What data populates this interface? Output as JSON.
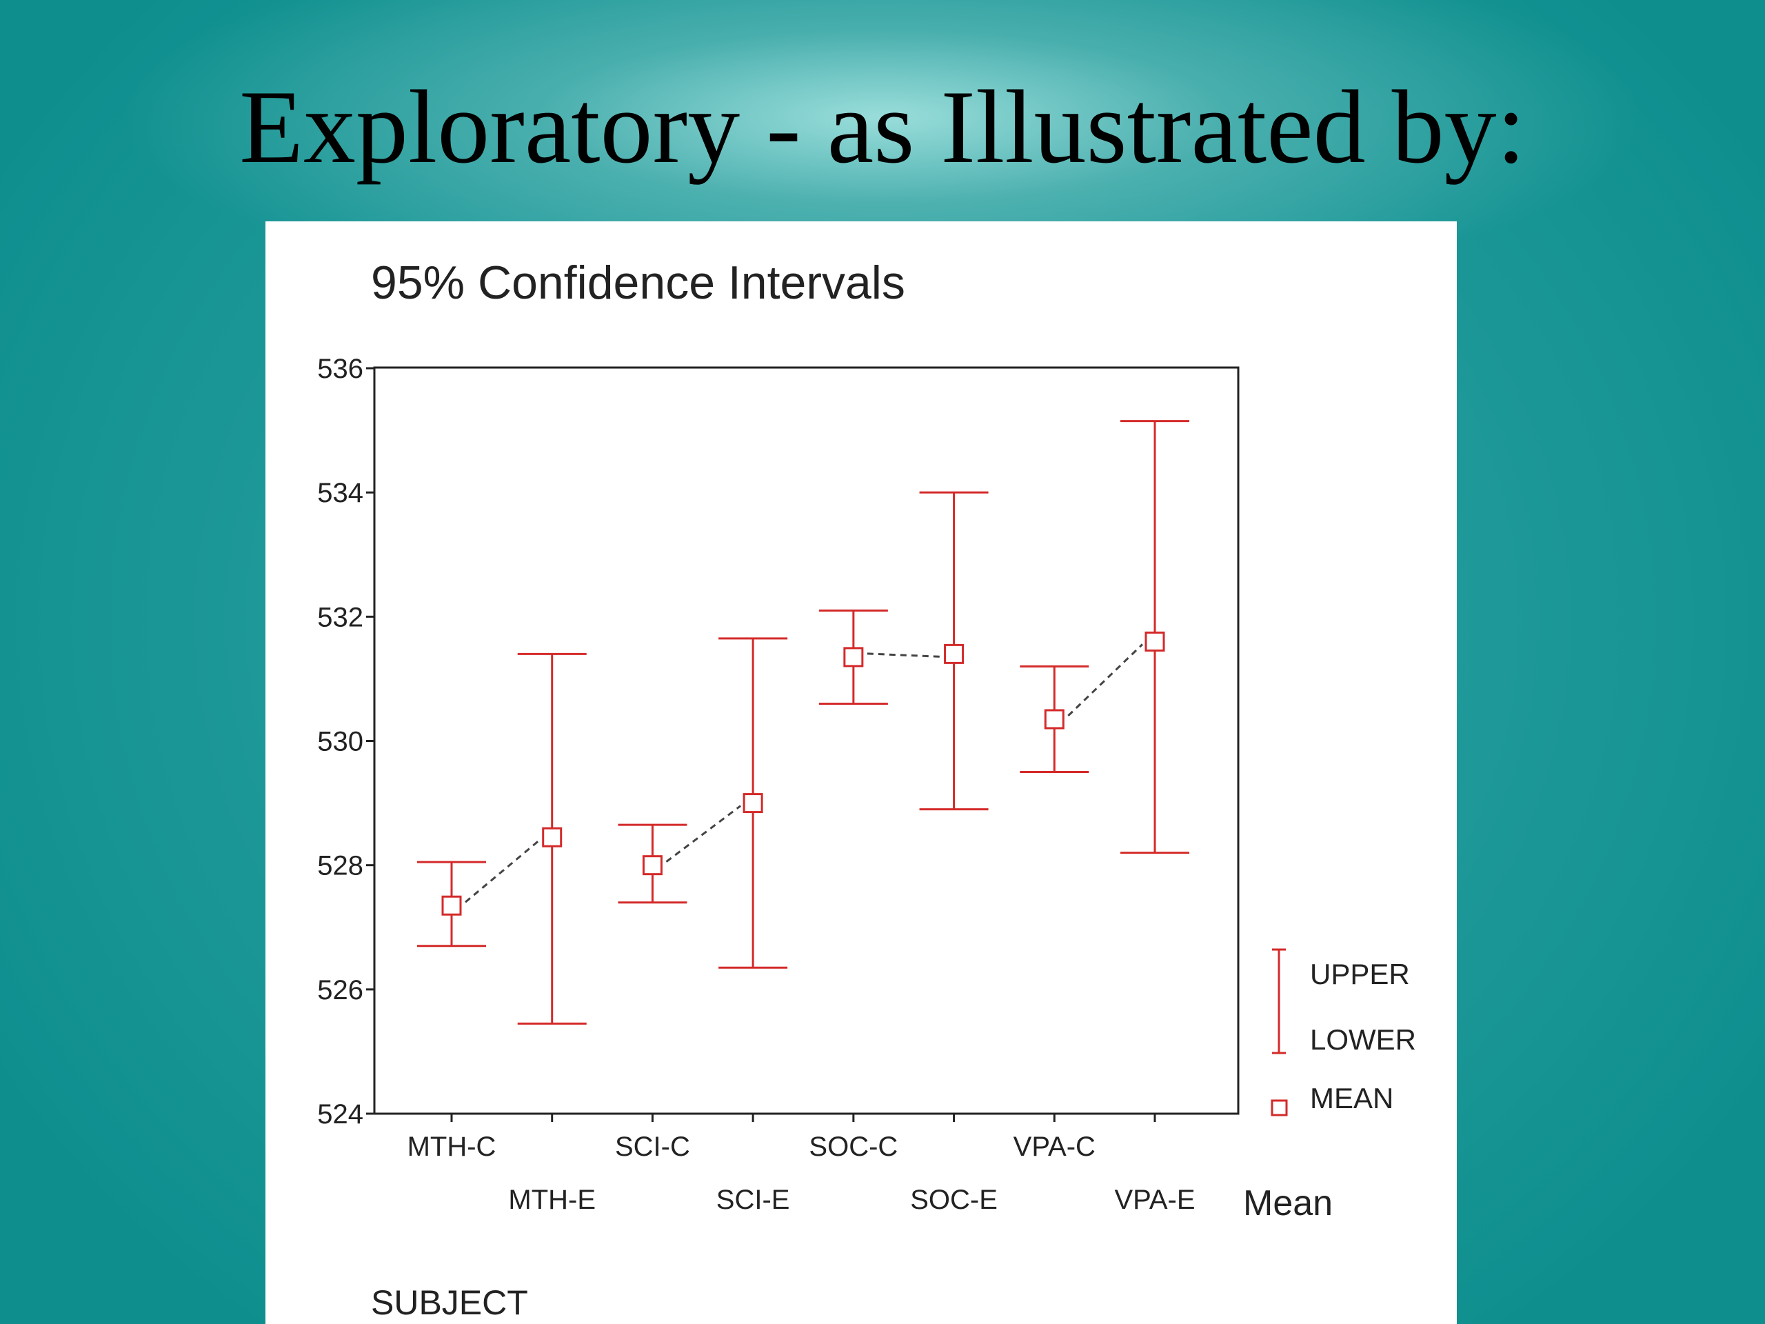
{
  "slide": {
    "title": "Exploratory - as Illustrated by:"
  },
  "colors": {
    "interval": "#d42a2a",
    "connector": "#444444",
    "axis": "#222222"
  },
  "chart_data": {
    "type": "errorbar",
    "title": "95% Confidence Intervals",
    "xlabel": "SUBJECT",
    "ylabel": "",
    "ylim": [
      524,
      536
    ],
    "yticks": [
      524,
      526,
      528,
      530,
      532,
      534,
      536
    ],
    "categories": [
      "MTH-C",
      "MTH-E",
      "SCI-C",
      "SCI-E",
      "SOC-C",
      "SOC-E",
      "VPA-C",
      "VPA-E"
    ],
    "upper": [
      528.05,
      531.4,
      528.65,
      531.65,
      532.1,
      534.0,
      531.2,
      535.15
    ],
    "mean": [
      527.35,
      528.45,
      528.0,
      529.0,
      531.35,
      531.4,
      530.35,
      531.6
    ],
    "lower": [
      526.7,
      525.45,
      527.4,
      526.35,
      530.6,
      528.9,
      529.5,
      528.2
    ],
    "connected_pairs": [
      [
        0,
        1
      ],
      [
        2,
        3
      ],
      [
        4,
        5
      ],
      [
        6,
        7
      ]
    ],
    "legend": {
      "title": "Mean",
      "upper_label": "UPPER",
      "lower_label": "LOWER",
      "mean_label": "MEAN",
      "placement": "right"
    }
  }
}
